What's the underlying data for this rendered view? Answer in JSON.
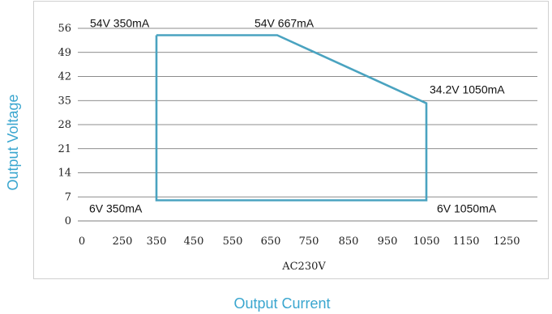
{
  "chart_data": {
    "type": "line",
    "title": "",
    "xlabel": "Output Current",
    "x_sublabel": "AC230V",
    "ylabel": "Output Voltage",
    "x_ticks": [
      "0",
      "250",
      "350",
      "450",
      "550",
      "650",
      "750",
      "850",
      "950",
      "1050",
      "1150",
      "1250"
    ],
    "y_ticks": [
      0,
      7,
      14,
      21,
      28,
      35,
      42,
      49,
      56
    ],
    "ylim": [
      0,
      56
    ],
    "grid": "horizontal",
    "series": [
      {
        "color": "#4aa3c0",
        "points": [
          {
            "x": 350,
            "y": 54
          },
          {
            "x": 667,
            "y": 54
          },
          {
            "x": 1050,
            "y": 34.2
          },
          {
            "x": 1050,
            "y": 6
          },
          {
            "x": 350,
            "y": 6
          },
          {
            "x": 350,
            "y": 54
          }
        ]
      }
    ],
    "annotations": [
      {
        "text": "54V 350mA",
        "x": 350,
        "y": 54
      },
      {
        "text": "54V 667mA",
        "x": 667,
        "y": 54
      },
      {
        "text": "34.2V 1050mA",
        "x": 1050,
        "y": 34.2
      },
      {
        "text": "6V 350mA",
        "x": 350,
        "y": 6
      },
      {
        "text": "6V 1050mA",
        "x": 1050,
        "y": 6
      }
    ]
  }
}
